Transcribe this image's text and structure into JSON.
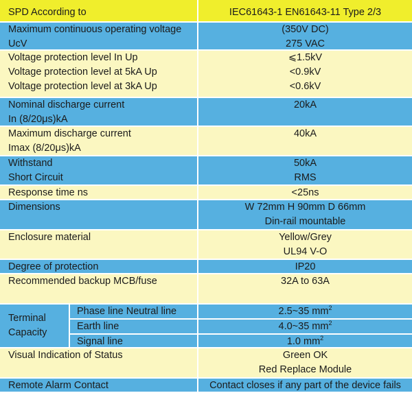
{
  "colors": {
    "header": "#f0ee2c",
    "blue": "#56b0e0",
    "cream": "#fbf7c1"
  },
  "rows": [
    {
      "style": "header",
      "label": [
        "SPD According to"
      ],
      "value": [
        "IEC61643-1 EN61643-11 Type 2/3"
      ]
    },
    {
      "style": "blue",
      "label": [
        "Maximum continuous operating voltage",
        "UcV"
      ],
      "value": [
        "(350V DC)",
        "275 VAC"
      ]
    },
    {
      "style": "cream",
      "label": [
        "Voltage protection level In    Up",
        "Voltage protection level at 5kA Up",
        "Voltage protection level at 3kA Up"
      ],
      "value": [
        "⩽1.5kV",
        "<0.9kV",
        "<0.6kV"
      ]
    },
    {
      "style": "blue",
      "label": [
        "Nominal discharge current",
        "In (8/20μs)kA"
      ],
      "value": [
        "20kA"
      ]
    },
    {
      "style": "cream",
      "label": [
        "Maximum discharge current",
        "Imax (8/20μs)kA"
      ],
      "value": [
        "40kA"
      ]
    },
    {
      "style": "blue",
      "label": [
        "Withstand",
        "Short Circuit"
      ],
      "value": [
        "50kA",
        "RMS"
      ]
    },
    {
      "style": "cream",
      "label": [
        "Response time ns"
      ],
      "value": [
        "<25ns"
      ]
    },
    {
      "style": "blue",
      "label": [
        "Dimensions"
      ],
      "value": [
        "W 72mm H 90mm D 66mm",
        "Din-rail mountable"
      ]
    },
    {
      "style": "cream",
      "label": [
        "Enclosure material"
      ],
      "value": [
        "Yellow/Grey",
        "UL94 V-O"
      ]
    },
    {
      "style": "blue",
      "label": [
        "Degree of protection"
      ],
      "value": [
        "IP20"
      ]
    },
    {
      "style": "cream",
      "label": [
        "Recommended backup MCB/fuse"
      ],
      "value": [
        "32A to 63A"
      ]
    },
    {
      "style": "blue",
      "group": [
        "Terminal",
        "Capacity"
      ],
      "subrows": [
        {
          "label": "Phase line Neutral line",
          "value": "2.5~35 mm",
          "sup": "2"
        },
        {
          "label": "Earth line",
          "value": "4.0~35 mm",
          "sup": "2"
        },
        {
          "label": "Signal line",
          "value": "1.0 mm",
          "sup": "2"
        }
      ]
    },
    {
      "style": "cream",
      "label": [
        "Visual Indication of Status"
      ],
      "value": [
        "Green OK",
        "Red Replace Module"
      ]
    },
    {
      "style": "blue",
      "label": [
        "Remote Alarm Contact"
      ],
      "value": [
        "Contact closes if any part of the device fails"
      ]
    }
  ]
}
